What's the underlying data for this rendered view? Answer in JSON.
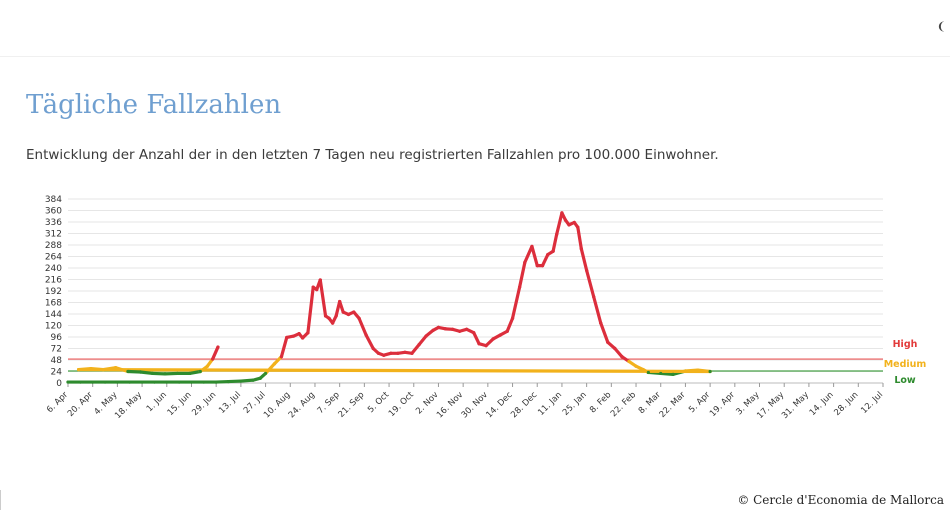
{
  "page": {
    "title": "Tägliche Fallzahlen",
    "subtitle": "Entwicklung der Anzahl der in den letzten 7 Tagen neu registrierten Fallzahlen pro 100.000 Einwohner.",
    "credit": "© Cercle d'Economia de Mallorca",
    "corner_mark": "❨"
  },
  "chart_data": {
    "type": "line",
    "title": "",
    "xlabel": "",
    "ylabel": "",
    "ylim": [
      0,
      384
    ],
    "yticks": [
      0,
      24,
      48,
      72,
      96,
      120,
      144,
      168,
      192,
      216,
      240,
      264,
      288,
      312,
      336,
      360,
      384
    ],
    "x_tick_labels": [
      "6. Apr",
      "20. Apr",
      "4. May",
      "18. May",
      "1. Jun",
      "15. Jun",
      "29. Jun",
      "13. Jul",
      "27. Jul",
      "10. Aug",
      "24. Aug",
      "7. Sep",
      "21. Sep",
      "5. Oct",
      "19. Oct",
      "2. Nov",
      "16. Nov",
      "30. Nov",
      "14. Dec",
      "28. Dec",
      "11. Jan",
      "25. Jan",
      "8. Feb",
      "22. Feb",
      "8. Mar",
      "22. Mar",
      "5. Apr",
      "19. Apr",
      "3. May",
      "17. May",
      "31. May",
      "14. Jun",
      "28. Jun",
      "12. Jul"
    ],
    "x_tick_interval_days": 14,
    "grid": true,
    "thresholds": [
      {
        "label": "High",
        "value": 50,
        "color": "#e23a3a"
      },
      {
        "label": "Medium",
        "value": 25,
        "color": "#f2b21c"
      },
      {
        "label": "Low",
        "value": 25,
        "color": "#2e8b2e"
      }
    ],
    "threshold_lines": [
      {
        "value": 50,
        "color": "#ec5a5a"
      },
      {
        "value": 25,
        "color": "#4aa24a"
      }
    ],
    "line_colors": {
      "high": "#dc2e3c",
      "medium": "#f2b21c",
      "low": "#2e8b2e"
    },
    "points": [
      {
        "date": "6. Apr",
        "value": 2
      },
      {
        "date": "13. Apr",
        "value": 2
      },
      {
        "date": "20. Apr",
        "value": 2
      },
      {
        "date": "27. Apr",
        "value": 2
      },
      {
        "date": "4. May",
        "value": 2
      },
      {
        "date": "11. May",
        "value": 2
      },
      {
        "date": "18. May",
        "value": 2
      },
      {
        "date": "25. May",
        "value": 2
      },
      {
        "date": "1. Jun",
        "value": 2
      },
      {
        "date": "8. Jun",
        "value": 2
      },
      {
        "date": "15. Jun",
        "value": 2
      },
      {
        "date": "22. Jun",
        "value": 2
      },
      {
        "date": "29. Jun",
        "value": 2
      },
      {
        "date": "6. Jul",
        "value": 3
      },
      {
        "date": "13. Jul",
        "value": 4
      },
      {
        "date": "20. Jul",
        "value": 6
      },
      {
        "date": "24. Jul",
        "value": 10
      },
      {
        "date": "27. Jul",
        "value": 20
      },
      {
        "date": "1. Aug",
        "value": 40
      },
      {
        "date": "5. Aug",
        "value": 55
      },
      {
        "date": "8. Aug",
        "value": 95
      },
      {
        "date": "12. Aug",
        "value": 98
      },
      {
        "date": "15. Aug",
        "value": 103
      },
      {
        "date": "17. Aug",
        "value": 94
      },
      {
        "date": "20. Aug",
        "value": 105
      },
      {
        "date": "23. Aug",
        "value": 200
      },
      {
        "date": "25. Aug",
        "value": 195
      },
      {
        "date": "27. Aug",
        "value": 215
      },
      {
        "date": "30. Aug",
        "value": 140
      },
      {
        "date": "1. Sep",
        "value": 135
      },
      {
        "date": "3. Sep",
        "value": 125
      },
      {
        "date": "5. Sep",
        "value": 140
      },
      {
        "date": "7. Sep",
        "value": 170
      },
      {
        "date": "9. Sep",
        "value": 148
      },
      {
        "date": "12. Sep",
        "value": 143
      },
      {
        "date": "15. Sep",
        "value": 148
      },
      {
        "date": "18. Sep",
        "value": 135
      },
      {
        "date": "22. Sep",
        "value": 100
      },
      {
        "date": "26. Sep",
        "value": 72
      },
      {
        "date": "29. Sep",
        "value": 62
      },
      {
        "date": "2. Oct",
        "value": 58
      },
      {
        "date": "6. Oct",
        "value": 62
      },
      {
        "date": "10. Oct",
        "value": 62
      },
      {
        "date": "14. Oct",
        "value": 64
      },
      {
        "date": "18. Oct",
        "value": 62
      },
      {
        "date": "22. Oct",
        "value": 80
      },
      {
        "date": "26. Oct",
        "value": 98
      },
      {
        "date": "30. Oct",
        "value": 110
      },
      {
        "date": "2. Nov",
        "value": 116
      },
      {
        "date": "6. Nov",
        "value": 113
      },
      {
        "date": "10. Nov",
        "value": 112
      },
      {
        "date": "14. Nov",
        "value": 108
      },
      {
        "date": "18. Nov",
        "value": 112
      },
      {
        "date": "22. Nov",
        "value": 105
      },
      {
        "date": "25. Nov",
        "value": 82
      },
      {
        "date": "29. Nov",
        "value": 78
      },
      {
        "date": "3. Dec",
        "value": 92
      },
      {
        "date": "7. Dec",
        "value": 100
      },
      {
        "date": "11. Dec",
        "value": 108
      },
      {
        "date": "14. Dec",
        "value": 135
      },
      {
        "date": "18. Dec",
        "value": 200
      },
      {
        "date": "21. Dec",
        "value": 252
      },
      {
        "date": "25. Dec",
        "value": 285
      },
      {
        "date": "28. Dec",
        "value": 245
      },
      {
        "date": "31. Dec",
        "value": 245
      },
      {
        "date": "3. Jan",
        "value": 268
      },
      {
        "date": "6. Jan",
        "value": 275
      },
      {
        "date": "8. Jan",
        "value": 310
      },
      {
        "date": "11. Jan",
        "value": 355
      },
      {
        "date": "13. Jan",
        "value": 340
      },
      {
        "date": "15. Jan",
        "value": 330
      },
      {
        "date": "18. Jan",
        "value": 335
      },
      {
        "date": "20. Jan",
        "value": 325
      },
      {
        "date": "22. Jan",
        "value": 280
      },
      {
        "date": "25. Jan",
        "value": 235
      },
      {
        "date": "29. Jan",
        "value": 180
      },
      {
        "date": "2. Feb",
        "value": 125
      },
      {
        "date": "6. Feb",
        "value": 85
      },
      {
        "date": "10. Feb",
        "value": 72
      },
      {
        "date": "14. Feb",
        "value": 55
      },
      {
        "date": "18. Feb",
        "value": 45
      },
      {
        "date": "22. Feb",
        "value": 35
      },
      {
        "date": "26. Feb",
        "value": 28
      },
      {
        "date": "1. Mar",
        "value": 22
      },
      {
        "date": "8. Mar",
        "value": 20
      },
      {
        "date": "15. Mar",
        "value": 18
      },
      {
        "date": "22. Mar",
        "value": 25
      },
      {
        "date": "29. Mar",
        "value": 27
      },
      {
        "date": "5. Apr",
        "value": 24
      },
      {
        "date": "12. Apr",
        "value": 28
      },
      {
        "date": "19. Apr",
        "value": 30
      },
      {
        "date": "26. Apr",
        "value": 28
      },
      {
        "date": "3. May",
        "value": 32
      },
      {
        "date": "10. May",
        "value": 24
      },
      {
        "date": "17. May",
        "value": 23
      },
      {
        "date": "24. May",
        "value": 20
      },
      {
        "date": "31. May",
        "value": 19
      },
      {
        "date": "7. Jun",
        "value": 20
      },
      {
        "date": "14. Jun",
        "value": 20
      },
      {
        "date": "20. Jun",
        "value": 24
      },
      {
        "date": "24. Jun",
        "value": 35
      },
      {
        "date": "27. Jun",
        "value": 50
      },
      {
        "date": "30. Jun",
        "value": 75
      }
    ]
  }
}
